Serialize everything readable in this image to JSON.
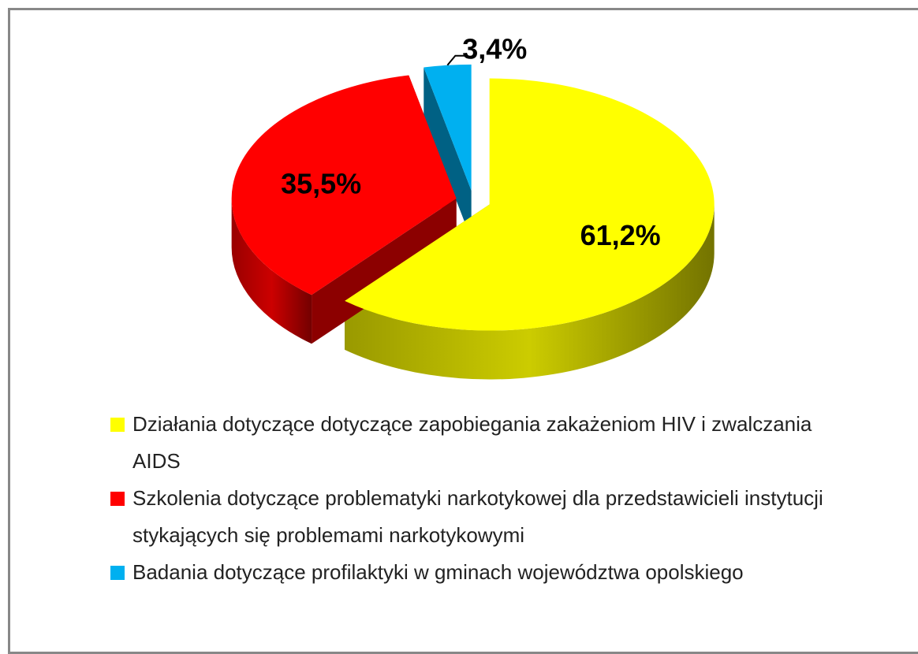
{
  "chart_data": {
    "type": "pie3d",
    "series": [
      {
        "name": "Działania dotyczące dotyczące zapobiegania zakażeniom HIV i zwalczania AIDS",
        "color": "#ffff00"
      },
      {
        "name": "Szkolenia dotyczące problematyki narkotykowej dla przedstawicieli instytucji stykających się problemami narkotykowymi",
        "color": "#ff0000"
      },
      {
        "name": "Badania dotyczące profilaktyki w gminach województwa opolskiego",
        "color": "#00b0f0"
      }
    ],
    "values": [
      61.2,
      35.5,
      3.4
    ],
    "value_labels": [
      "61,2%",
      "35,5%",
      "3,4%"
    ],
    "legend": "bottom"
  }
}
